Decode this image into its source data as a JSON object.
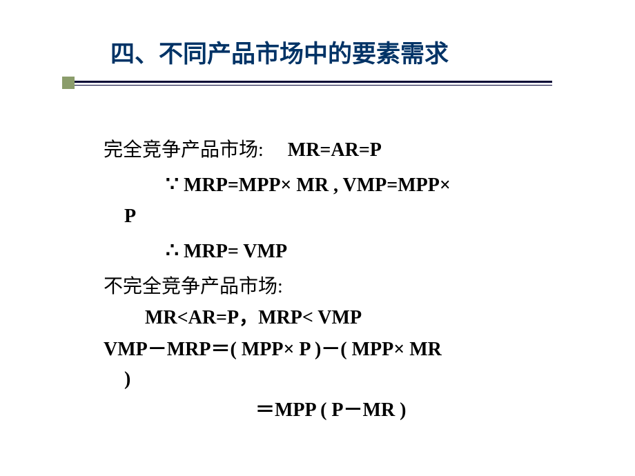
{
  "slide": {
    "title": "四、不同产品市场中的要素需求",
    "styling": {
      "title_color": "#003366",
      "title_fontsize": 35,
      "title_fontweight": "bold",
      "body_color": "#000000",
      "body_fontsize": 28,
      "background_color": "#ffffff",
      "divider_color": "#000033",
      "square_color": "#8b9d6b"
    },
    "body": {
      "line1_label": "完全竞争产品市场:",
      "line1_formula": "MR=AR=P",
      "line2_symbol": "∵",
      "line2_formula": "MRP=MPP× MR , VMP=MPP×",
      "line2b": "P",
      "line3_symbol": "∴",
      "line3_formula": "MRP= VMP",
      "line4_label": "不完全竞争产品市场:",
      "line5_formula": "MR<AR=P，MRP< VMP",
      "line6_formula": "VMP－MRP＝( MPP× P )－( MPP× MR",
      "line6b": ")",
      "line7_formula": "＝MPP ( P－MR )"
    }
  }
}
